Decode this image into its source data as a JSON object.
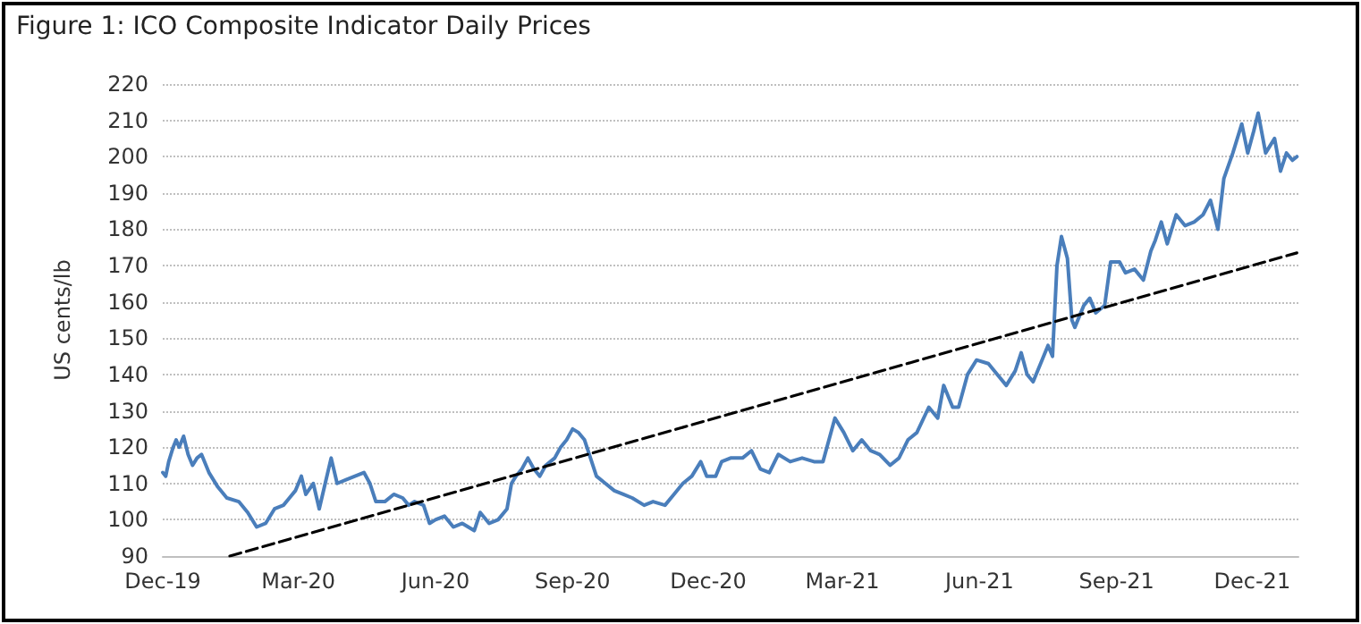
{
  "chart_data": {
    "type": "line",
    "title": "Figure 1: ICO Composite Indicator Daily Prices",
    "ylabel": "US cents/lb",
    "xlim": [
      "2019-12-01",
      "2022-01-01"
    ],
    "xticks": [
      {
        "value": "2019-12-01",
        "label": "Dec-19"
      },
      {
        "value": "2020-03-01",
        "label": "Mar-20"
      },
      {
        "value": "2020-06-01",
        "label": "Jun-20"
      },
      {
        "value": "2020-09-01",
        "label": "Sep-20"
      },
      {
        "value": "2020-12-01",
        "label": "Dec-20"
      },
      {
        "value": "2021-03-01",
        "label": "Mar-21"
      },
      {
        "value": "2021-06-01",
        "label": "Jun-21"
      },
      {
        "value": "2021-09-01",
        "label": "Sep-21"
      },
      {
        "value": "2021-12-01",
        "label": "Dec-21"
      }
    ],
    "ylim": [
      90,
      220
    ],
    "yticks": [
      90,
      100,
      110,
      120,
      130,
      140,
      150,
      160,
      170,
      180,
      190,
      200,
      210,
      220
    ],
    "grid": "y",
    "marker": "none",
    "line_style": "solid",
    "series": [
      {
        "color": "#4a7ebb",
        "x": [
          "2019-12-01",
          "2019-12-03",
          "2019-12-05",
          "2019-12-08",
          "2019-12-10",
          "2019-12-12",
          "2019-12-15",
          "2019-12-18",
          "2019-12-21",
          "2019-12-24",
          "2019-12-27",
          "2020-01-01",
          "2020-01-07",
          "2020-01-13",
          "2020-01-21",
          "2020-01-27",
          "2020-02-02",
          "2020-02-08",
          "2020-02-14",
          "2020-02-20",
          "2020-02-24",
          "2020-02-28",
          "2020-03-03",
          "2020-03-06",
          "2020-03-11",
          "2020-03-15",
          "2020-03-19",
          "2020-03-23",
          "2020-03-27",
          "2020-04-02",
          "2020-04-08",
          "2020-04-14",
          "2020-04-18",
          "2020-04-22",
          "2020-04-28",
          "2020-05-04",
          "2020-05-10",
          "2020-05-14",
          "2020-05-18",
          "2020-05-24",
          "2020-05-28",
          "2020-06-01",
          "2020-06-07",
          "2020-06-13",
          "2020-06-19",
          "2020-06-27",
          "2020-07-01",
          "2020-07-07",
          "2020-07-13",
          "2020-07-19",
          "2020-07-22",
          "2020-07-25",
          "2020-07-29",
          "2020-08-02",
          "2020-08-06",
          "2020-08-10",
          "2020-08-14",
          "2020-08-20",
          "2020-08-24",
          "2020-08-28",
          "2020-09-01",
          "2020-09-05",
          "2020-09-09",
          "2020-09-13",
          "2020-09-17",
          "2020-09-23",
          "2020-09-29",
          "2020-10-05",
          "2020-10-11",
          "2020-10-19",
          "2020-10-25",
          "2020-11-02",
          "2020-11-08",
          "2020-11-14",
          "2020-11-20",
          "2020-11-26",
          "2020-11-30",
          "2020-12-06",
          "2020-12-10",
          "2020-12-16",
          "2020-12-24",
          "2020-12-30",
          "2021-01-05",
          "2021-01-11",
          "2021-01-17",
          "2021-01-25",
          "2021-02-02",
          "2021-02-10",
          "2021-02-16",
          "2021-02-24",
          "2021-03-02",
          "2021-03-08",
          "2021-03-14",
          "2021-03-20",
          "2021-03-26",
          "2021-04-02",
          "2021-04-08",
          "2021-04-14",
          "2021-04-20",
          "2021-04-28",
          "2021-05-04",
          "2021-05-08",
          "2021-05-14",
          "2021-05-18",
          "2021-05-24",
          "2021-05-30",
          "2021-06-07",
          "2021-06-13",
          "2021-06-19",
          "2021-06-25",
          "2021-06-29",
          "2021-07-03",
          "2021-07-07",
          "2021-07-13",
          "2021-07-17",
          "2021-07-20",
          "2021-07-23",
          "2021-07-26",
          "2021-07-30",
          "2021-08-02",
          "2021-08-04",
          "2021-08-10",
          "2021-08-14",
          "2021-08-18",
          "2021-08-24",
          "2021-08-28",
          "2021-09-03",
          "2021-09-07",
          "2021-09-13",
          "2021-09-19",
          "2021-09-24",
          "2021-09-27",
          "2021-10-01",
          "2021-10-05",
          "2021-10-11",
          "2021-10-17",
          "2021-10-23",
          "2021-10-29",
          "2021-11-03",
          "2021-11-08",
          "2021-11-12",
          "2021-11-18",
          "2021-11-24",
          "2021-11-28",
          "2021-12-02",
          "2021-12-05",
          "2021-12-10",
          "2021-12-16",
          "2021-12-20",
          "2021-12-24",
          "2021-12-28",
          "2021-12-31"
        ],
        "values": [
          113,
          112,
          116,
          120,
          122,
          120,
          123,
          118,
          115,
          117,
          118,
          113,
          109,
          106,
          105,
          102,
          98,
          99,
          103,
          104,
          106,
          108,
          112,
          107,
          110,
          103,
          110,
          117,
          110,
          111,
          112,
          113,
          110,
          105,
          105,
          107,
          106,
          104,
          105,
          104,
          99,
          100,
          101,
          98,
          99,
          97,
          102,
          99,
          100,
          103,
          110,
          112,
          114,
          117,
          114,
          112,
          115,
          117,
          120,
          122,
          125,
          124,
          122,
          117,
          112,
          110,
          108,
          107,
          106,
          104,
          105,
          104,
          107,
          110,
          112,
          116,
          112,
          112,
          116,
          117,
          117,
          119,
          114,
          113,
          118,
          116,
          117,
          116,
          116,
          128,
          124,
          119,
          122,
          119,
          118,
          115,
          117,
          122,
          124,
          131,
          128,
          137,
          131,
          131,
          140,
          144,
          143,
          140,
          137,
          141,
          146,
          140,
          138,
          144,
          148,
          145,
          170,
          178,
          172,
          155,
          153,
          159,
          161,
          157,
          159,
          171,
          171,
          168,
          169,
          166,
          174,
          177,
          182,
          176,
          184,
          181,
          182,
          184,
          188,
          180,
          194,
          201,
          209,
          201,
          207,
          212,
          201,
          205,
          196,
          201,
          199,
          200
        ]
      },
      {
        "type": "line",
        "color": "#000000",
        "line_style": "dashed",
        "x": [
          "2020-01-15",
          "2021-12-31"
        ],
        "values": [
          90,
          173.5
        ]
      }
    ]
  }
}
